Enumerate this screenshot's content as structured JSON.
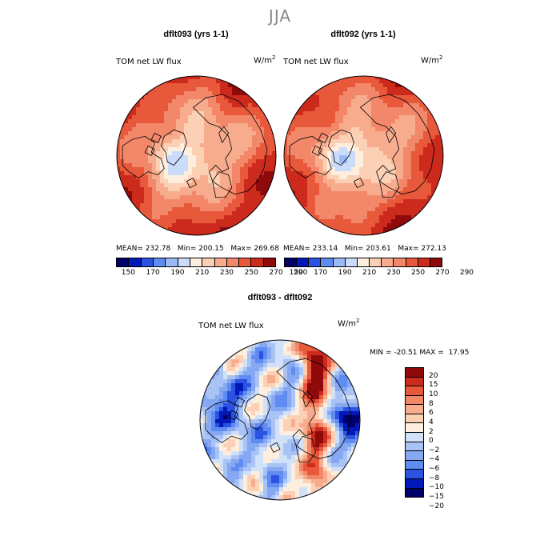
{
  "season": "JJA",
  "colors": {
    "abs": [
      "#00006b",
      "#0019b8",
      "#2b52e0",
      "#5e8cf0",
      "#9ab9f5",
      "#cadcfa",
      "#fdeedd",
      "#fcd0b5",
      "#f7ad8d",
      "#f2876a",
      "#e8583b",
      "#cc2a1c",
      "#8f0a0a"
    ],
    "diff": [
      "#00006b",
      "#0019b8",
      "#2b52e0",
      "#5e8cf0",
      "#86a8f2",
      "#a9c3f5",
      "#d2e1fa",
      "#fdeedd",
      "#fcd0b5",
      "#f7ad8d",
      "#f2876a",
      "#e8583b",
      "#cc2a1c",
      "#8f0a0a"
    ],
    "coast": "#000000"
  },
  "panels": [
    {
      "title": "dflt093 (yrs 1-1)",
      "variable": "TOM net LW flux",
      "units_base": "W/m",
      "units_exp": "2",
      "mean_label": "MEAN=",
      "mean": "232.78",
      "min_label": "Min=",
      "min": "200.15",
      "max_label": "Max=",
      "max": "269.68"
    },
    {
      "title": "dflt092 (yrs 1-1)",
      "variable": "TOM net LW flux",
      "units_base": "W/m",
      "units_exp": "2",
      "mean_label": "MEAN=",
      "mean": "233.14",
      "min_label": "Min=",
      "min": "203.61",
      "max_label": "Max=",
      "max": "272.13"
    }
  ],
  "abs_ticks": [
    "150",
    "170",
    "190",
    "210",
    "230",
    "250",
    "270",
    "290"
  ],
  "diff_panel": {
    "title": "dflt093 - dflt092",
    "variable": "TOM net LW flux",
    "units_base": "W/m",
    "units_exp": "2",
    "min_label": "MIN =",
    "min": "-20.51",
    "max_label": "MAX =",
    "max": "17.95",
    "ticks": [
      "20",
      "15",
      "10",
      "8",
      "6",
      "4",
      "2",
      "0",
      "−2",
      "−4",
      "−6",
      "−8",
      "−10",
      "−15",
      "−20"
    ]
  }
}
